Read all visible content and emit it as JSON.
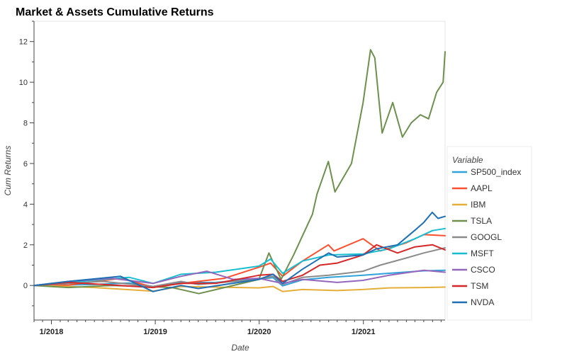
{
  "chart_data": {
    "type": "line",
    "title": "Market & Assets Cumulative Returns",
    "xlabel": "Date",
    "ylabel": "Cum Returns",
    "x_ticks": [
      "1/2018",
      "1/2019",
      "1/2020",
      "1/2021"
    ],
    "xlim": [
      "2017-11-01",
      "2021-10-15"
    ],
    "ylim": [
      -1.7,
      13
    ],
    "y_ticks": [
      0,
      2,
      4,
      6,
      8,
      10,
      12
    ],
    "grid": false,
    "legend": {
      "title": "Variable",
      "position": "right"
    },
    "series": [
      {
        "name": "SP500_index",
        "color": "#30a2da",
        "points": [
          [
            "2017-11-01",
            0
          ],
          [
            "2018-02-01",
            0.02
          ],
          [
            "2018-06-01",
            0.05
          ],
          [
            "2018-10-01",
            0.12
          ],
          [
            "2018-12-24",
            -0.05
          ],
          [
            "2019-04-01",
            0.14
          ],
          [
            "2019-08-01",
            0.15
          ],
          [
            "2019-12-31",
            0.32
          ],
          [
            "2020-02-19",
            0.38
          ],
          [
            "2020-03-23",
            -0.02
          ],
          [
            "2020-06-01",
            0.28
          ],
          [
            "2020-09-01",
            0.4
          ],
          [
            "2020-12-31",
            0.5
          ],
          [
            "2021-04-01",
            0.6
          ],
          [
            "2021-08-01",
            0.72
          ],
          [
            "2021-10-15",
            0.75
          ]
        ]
      },
      {
        "name": "AAPL",
        "color": "#fc4f30",
        "points": [
          [
            "2017-11-01",
            0
          ],
          [
            "2018-03-01",
            0.02
          ],
          [
            "2018-09-01",
            0.35
          ],
          [
            "2018-12-24",
            -0.08
          ],
          [
            "2019-05-01",
            0.15
          ],
          [
            "2019-09-01",
            0.35
          ],
          [
            "2019-12-31",
            0.9
          ],
          [
            "2020-02-10",
            1.1
          ],
          [
            "2020-03-23",
            0.45
          ],
          [
            "2020-06-01",
            1.2
          ],
          [
            "2020-08-31",
            2.0
          ],
          [
            "2020-09-20",
            1.7
          ],
          [
            "2020-12-31",
            2.3
          ],
          [
            "2021-03-01",
            1.7
          ],
          [
            "2021-06-01",
            2.1
          ],
          [
            "2021-08-01",
            2.5
          ],
          [
            "2021-10-15",
            2.45
          ]
        ]
      },
      {
        "name": "IBM",
        "color": "#e5ae38",
        "points": [
          [
            "2017-11-01",
            0
          ],
          [
            "2018-03-01",
            -0.05
          ],
          [
            "2018-06-01",
            -0.1
          ],
          [
            "2018-12-24",
            -0.28
          ],
          [
            "2019-04-01",
            -0.05
          ],
          [
            "2019-08-01",
            -0.08
          ],
          [
            "2019-12-31",
            -0.12
          ],
          [
            "2020-02-19",
            -0.05
          ],
          [
            "2020-03-23",
            -0.3
          ],
          [
            "2020-06-01",
            -0.2
          ],
          [
            "2020-10-01",
            -0.25
          ],
          [
            "2020-12-31",
            -0.2
          ],
          [
            "2021-04-01",
            -0.12
          ],
          [
            "2021-08-01",
            -0.1
          ],
          [
            "2021-10-15",
            -0.08
          ]
        ]
      },
      {
        "name": "TSLA",
        "color": "#6d904f",
        "points": [
          [
            "2017-11-01",
            0
          ],
          [
            "2018-03-01",
            -0.1
          ],
          [
            "2018-08-01",
            0.0
          ],
          [
            "2018-12-01",
            -0.05
          ],
          [
            "2019-03-01",
            -0.1
          ],
          [
            "2019-06-03",
            -0.4
          ],
          [
            "2019-09-01",
            -0.1
          ],
          [
            "2019-12-31",
            0.3
          ],
          [
            "2020-02-04",
            1.6
          ],
          [
            "2020-03-18",
            0.3
          ],
          [
            "2020-05-01",
            1.5
          ],
          [
            "2020-07-06",
            3.5
          ],
          [
            "2020-07-22",
            4.5
          ],
          [
            "2020-08-31",
            6.1
          ],
          [
            "2020-09-23",
            4.6
          ],
          [
            "2020-11-20",
            6.0
          ],
          [
            "2020-12-31",
            9.0
          ],
          [
            "2021-01-26",
            11.6
          ],
          [
            "2021-02-10",
            11.2
          ],
          [
            "2021-03-08",
            7.5
          ],
          [
            "2021-04-14",
            9.0
          ],
          [
            "2021-05-18",
            7.3
          ],
          [
            "2021-06-18",
            8.0
          ],
          [
            "2021-07-20",
            8.4
          ],
          [
            "2021-08-18",
            8.2
          ],
          [
            "2021-09-15",
            9.5
          ],
          [
            "2021-10-08",
            10.0
          ],
          [
            "2021-10-15",
            11.5
          ]
        ]
      },
      {
        "name": "GOOGL",
        "color": "#8b8b8b",
        "points": [
          [
            "2017-11-01",
            0
          ],
          [
            "2018-02-01",
            0.08
          ],
          [
            "2018-07-01",
            0.2
          ],
          [
            "2018-12-24",
            -0.05
          ],
          [
            "2019-04-01",
            0.2
          ],
          [
            "2019-06-01",
            0.05
          ],
          [
            "2019-12-31",
            0.3
          ],
          [
            "2020-02-19",
            0.45
          ],
          [
            "2020-03-23",
            0.05
          ],
          [
            "2020-06-01",
            0.4
          ],
          [
            "2020-09-01",
            0.5
          ],
          [
            "2020-12-31",
            0.7
          ],
          [
            "2021-03-01",
            1.0
          ],
          [
            "2021-06-01",
            1.35
          ],
          [
            "2021-08-01",
            1.6
          ],
          [
            "2021-10-15",
            1.85
          ]
        ]
      },
      {
        "name": "MSFT",
        "color": "#17becf",
        "points": [
          [
            "2017-11-01",
            0
          ],
          [
            "2018-03-01",
            0.15
          ],
          [
            "2018-10-01",
            0.4
          ],
          [
            "2018-12-24",
            0.1
          ],
          [
            "2019-04-01",
            0.55
          ],
          [
            "2019-08-01",
            0.65
          ],
          [
            "2019-12-31",
            0.95
          ],
          [
            "2020-02-10",
            1.3
          ],
          [
            "2020-03-23",
            0.6
          ],
          [
            "2020-06-01",
            1.2
          ],
          [
            "2020-09-01",
            1.5
          ],
          [
            "2020-12-31",
            1.55
          ],
          [
            "2021-04-01",
            1.8
          ],
          [
            "2021-07-01",
            2.3
          ],
          [
            "2021-09-01",
            2.7
          ],
          [
            "2021-10-15",
            2.8
          ]
        ]
      },
      {
        "name": "CSCO",
        "color": "#9467bd",
        "points": [
          [
            "2017-11-01",
            0
          ],
          [
            "2018-03-01",
            0.2
          ],
          [
            "2018-08-01",
            0.35
          ],
          [
            "2018-12-24",
            0.1
          ],
          [
            "2019-04-01",
            0.45
          ],
          [
            "2019-07-01",
            0.7
          ],
          [
            "2019-10-01",
            0.3
          ],
          [
            "2019-12-31",
            0.35
          ],
          [
            "2020-03-23",
            0.1
          ],
          [
            "2020-06-01",
            0.3
          ],
          [
            "2020-10-01",
            0.15
          ],
          [
            "2020-12-31",
            0.25
          ],
          [
            "2021-04-01",
            0.5
          ],
          [
            "2021-08-01",
            0.75
          ],
          [
            "2021-10-15",
            0.65
          ]
        ]
      },
      {
        "name": "TSM",
        "color": "#d62728",
        "points": [
          [
            "2017-11-01",
            0
          ],
          [
            "2018-03-01",
            0.15
          ],
          [
            "2018-07-01",
            0.05
          ],
          [
            "2018-12-24",
            -0.1
          ],
          [
            "2019-04-01",
            0.1
          ],
          [
            "2019-08-01",
            0.1
          ],
          [
            "2019-12-31",
            0.5
          ],
          [
            "2020-02-19",
            0.55
          ],
          [
            "2020-03-23",
            0.2
          ],
          [
            "2020-06-01",
            0.5
          ],
          [
            "2020-08-01",
            1.0
          ],
          [
            "2020-10-01",
            1.1
          ],
          [
            "2020-12-31",
            1.5
          ],
          [
            "2021-02-16",
            2.0
          ],
          [
            "2021-05-01",
            1.6
          ],
          [
            "2021-07-01",
            1.9
          ],
          [
            "2021-09-01",
            2.0
          ],
          [
            "2021-10-15",
            1.75
          ]
        ]
      },
      {
        "name": "NVDA",
        "color": "#1f6fb5",
        "points": [
          [
            "2017-11-01",
            0
          ],
          [
            "2018-03-01",
            0.2
          ],
          [
            "2018-09-01",
            0.45
          ],
          [
            "2018-12-24",
            -0.3
          ],
          [
            "2019-04-01",
            0.0
          ],
          [
            "2019-06-01",
            -0.15
          ],
          [
            "2019-12-31",
            0.3
          ],
          [
            "2020-02-19",
            0.55
          ],
          [
            "2020-03-23",
            0.1
          ],
          [
            "2020-06-01",
            0.8
          ],
          [
            "2020-09-01",
            1.6
          ],
          [
            "2020-10-01",
            1.4
          ],
          [
            "2020-12-31",
            1.5
          ],
          [
            "2021-02-16",
            1.8
          ],
          [
            "2021-05-01",
            2.0
          ],
          [
            "2021-07-08",
            2.8
          ],
          [
            "2021-08-01",
            3.1
          ],
          [
            "2021-08-31",
            3.6
          ],
          [
            "2021-09-20",
            3.3
          ],
          [
            "2021-10-15",
            3.4
          ]
        ]
      }
    ]
  }
}
